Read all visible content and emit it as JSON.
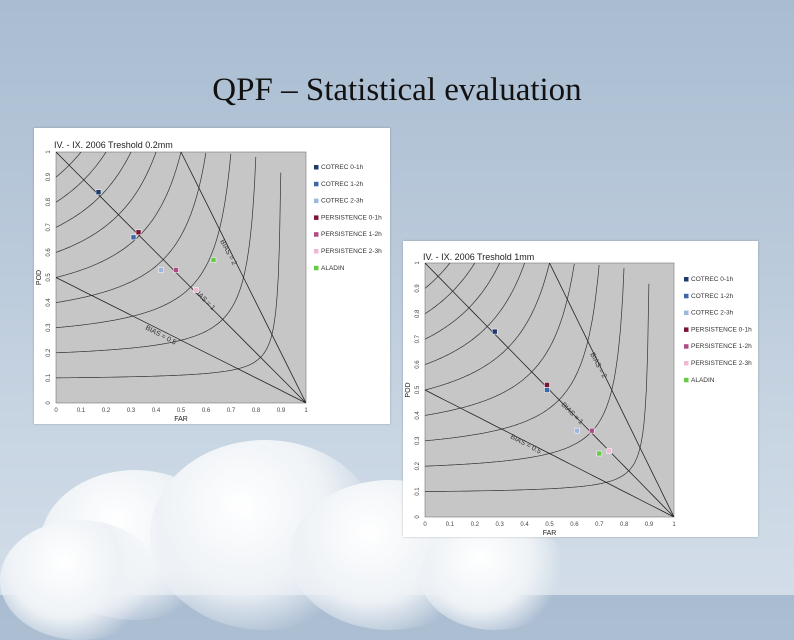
{
  "slide": {
    "title": "QPF – Statistical evaluation"
  },
  "colors": {
    "plot_bg": "#c6c6c6",
    "COTREC 0-1h": "#1f3a6b",
    "COTREC 1-2h": "#3d68a8",
    "COTREC 2-3h": "#9db7dd",
    "PERSISTENCE 0-1h": "#7a1437",
    "PERSISTENCE 1-2h": "#b04b86",
    "PERSISTENCE 2-3h": "#f0b8d2",
    "ALADIN": "#66cc44"
  },
  "chart_data": [
    {
      "type": "scatter",
      "title": "IV. - IX. 2006 Treshold 0.2mm",
      "xlabel": "FAR",
      "ylabel": "POD",
      "xlim": [
        0,
        1
      ],
      "ylim": [
        0,
        1
      ],
      "xticks": [
        "0",
        "0.1",
        "0.2",
        "0.3",
        "0.4",
        "0.5",
        "0.6",
        "0.7",
        "0.8",
        "0.9",
        "1"
      ],
      "yticks": [
        "0",
        "0.1",
        "0.2",
        "0.3",
        "0.4",
        "0.5",
        "0.6",
        "0.7",
        "0.8",
        "0.9",
        "1"
      ],
      "bias_labels": [
        "BIAS = 2",
        "BIAS = 1",
        "BIAS = 0.5"
      ],
      "legend": "right",
      "series": [
        {
          "name": "COTREC 0-1h",
          "x": 0.17,
          "y": 0.84
        },
        {
          "name": "COTREC 1-2h",
          "x": 0.31,
          "y": 0.66
        },
        {
          "name": "COTREC 2-3h",
          "x": 0.42,
          "y": 0.53
        },
        {
          "name": "PERSISTENCE 0-1h",
          "x": 0.33,
          "y": 0.68
        },
        {
          "name": "PERSISTENCE 1-2h",
          "x": 0.48,
          "y": 0.53
        },
        {
          "name": "PERSISTENCE 2-3h",
          "x": 0.56,
          "y": 0.45
        },
        {
          "name": "ALADIN",
          "x": 0.63,
          "y": 0.57
        }
      ]
    },
    {
      "type": "scatter",
      "title": "IV. - IX. 2006 Treshold 1mm",
      "xlabel": "FAR",
      "ylabel": "POD",
      "xlim": [
        0,
        1
      ],
      "ylim": [
        0,
        1
      ],
      "xticks": [
        "0",
        "0.1",
        "0.2",
        "0.3",
        "0.4",
        "0.5",
        "0.6",
        "0.7",
        "0.8",
        "0.9",
        "1"
      ],
      "yticks": [
        "0",
        "0.1",
        "0.2",
        "0.3",
        "0.4",
        "0.5",
        "0.6",
        "0.7",
        "0.8",
        "0.9",
        "1"
      ],
      "bias_labels": [
        "BIAS = 2",
        "BIAS = 1",
        "BIAS = 0.5"
      ],
      "legend": "right",
      "series": [
        {
          "name": "COTREC 0-1h",
          "x": 0.28,
          "y": 0.73
        },
        {
          "name": "COTREC 1-2h",
          "x": 0.49,
          "y": 0.5
        },
        {
          "name": "COTREC 2-3h",
          "x": 0.61,
          "y": 0.34
        },
        {
          "name": "PERSISTENCE 0-1h",
          "x": 0.49,
          "y": 0.52
        },
        {
          "name": "PERSISTENCE 1-2h",
          "x": 0.67,
          "y": 0.34
        },
        {
          "name": "PERSISTENCE 2-3h",
          "x": 0.74,
          "y": 0.26
        },
        {
          "name": "ALADIN",
          "x": 0.7,
          "y": 0.25
        }
      ]
    }
  ]
}
